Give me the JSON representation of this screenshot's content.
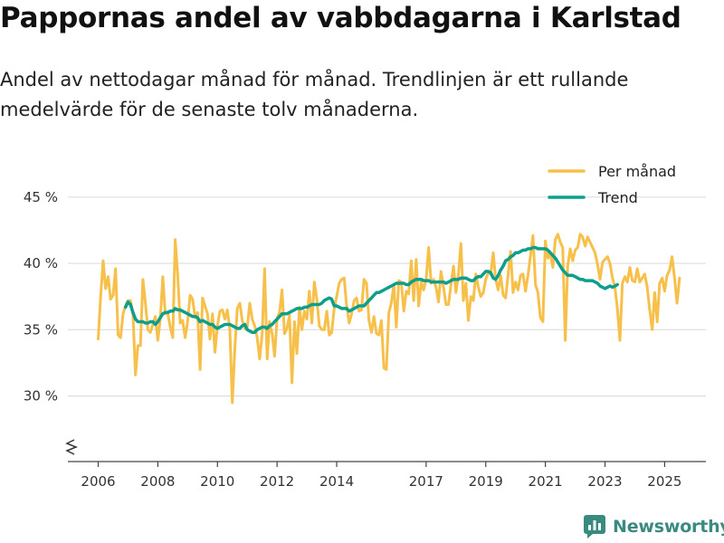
{
  "title": "Pappornas andel av vabbdagarna i Karlstad",
  "subtitle": "Andel av nettodagar månad för månad. Trendlinjen är ett rullande medelvärde för de senaste tolv månaderna.",
  "brand": "Newsworthy",
  "colors": {
    "per_manad": "#f7c04a",
    "trend": "#0e9e8c",
    "grid": "#dddddd",
    "brand": "#3b8a7f"
  },
  "chart_data": {
    "type": "line",
    "title": "Pappornas andel av vabbdagarna i Karlstad",
    "xlabel": "",
    "ylabel": "",
    "x_range": [
      2006,
      2025.5
    ],
    "ylim": [
      25,
      45
    ],
    "y_ticks": [
      30,
      35,
      40,
      45
    ],
    "y_tick_labels": [
      "30 %",
      "35 %",
      "40 %",
      "45 %"
    ],
    "x_ticks": [
      2006,
      2008,
      2010,
      2012,
      2014,
      2017,
      2019,
      2021,
      2023,
      2025
    ],
    "x_tick_labels": [
      "2006",
      "2008",
      "2010",
      "2012",
      "2014",
      "2017",
      "2019",
      "2021",
      "2023",
      "2025"
    ],
    "legend_position": "top-right",
    "series": [
      {
        "name": "Per månad",
        "type": "monthly",
        "start": 2006.0,
        "step": 0.0833333,
        "values": [
          34.3,
          37.5,
          40.2,
          38.1,
          39.0,
          37.3,
          37.6,
          39.6,
          34.6,
          34.4,
          36.2,
          36.8,
          37.2,
          37.2,
          36.2,
          31.6,
          33.8,
          33.8,
          38.8,
          37.0,
          35.0,
          34.8,
          35.4,
          36.0,
          34.2,
          35.8,
          39.0,
          36.2,
          36.2,
          35.2,
          34.4,
          41.8,
          39.2,
          35.5,
          35.7,
          34.4,
          35.6,
          37.6,
          37.3,
          35.9,
          36.3,
          32.0,
          37.4,
          36.8,
          36.2,
          34.3,
          36.2,
          33.3,
          35.3,
          36.4,
          36.5,
          35.8,
          36.5,
          35.0,
          29.5,
          33.6,
          36.6,
          37.0,
          35.7,
          35.1,
          35.2,
          37.0,
          35.8,
          35.3,
          34.4,
          32.8,
          34.7,
          39.6,
          32.8,
          35.6,
          34.7,
          33.0,
          35.9,
          36.3,
          38.0,
          34.7,
          35.1,
          36.1,
          31.0,
          35.6,
          33.2,
          36.7,
          35.0,
          36.4,
          35.8,
          37.9,
          35.5,
          38.6,
          37.3,
          35.3,
          35.0,
          35.0,
          36.4,
          34.6,
          34.8,
          36.6,
          37.5,
          38.5,
          38.8,
          38.9,
          36.8,
          35.5,
          36.2,
          37.2,
          37.4,
          36.4,
          36.5,
          38.8,
          38.5,
          35.7,
          34.8,
          36.0,
          34.7,
          34.6,
          35.7,
          32.1,
          32.0,
          36.3,
          37.0,
          38.4,
          35.2,
          38.7,
          38.6,
          36.4,
          37.9,
          37.7,
          40.2,
          37.2,
          40.3,
          36.8,
          38.6,
          38.0,
          38.8,
          41.2,
          38.5,
          38.8,
          38.2,
          37.1,
          39.4,
          38.2,
          36.9,
          36.9,
          38.4,
          39.8,
          37.8,
          39.2,
          41.5,
          37.2,
          38.5,
          35.7,
          37.5,
          37.2,
          39.2,
          38.2,
          37.5,
          37.8,
          38.8,
          39.3,
          39.2,
          40.8,
          38.8,
          38.0,
          39.1,
          37.6,
          37.4,
          39.2,
          40.9,
          37.8,
          38.6,
          38.0,
          39.1,
          39.2,
          37.9,
          39.1,
          40.6,
          42.1,
          38.4,
          37.8,
          35.9,
          35.6,
          41.7,
          40.4,
          40.7,
          39.7,
          41.8,
          42.2,
          41.6,
          41.2,
          34.2,
          39.8,
          41.1,
          40.2,
          41.0,
          41.2,
          42.2,
          42.0,
          41.3,
          42.0,
          41.6,
          41.2,
          40.8,
          39.9,
          38.8,
          40.1,
          40.3,
          40.5,
          40.0,
          38.9,
          38.2,
          36.6,
          34.2,
          38.5,
          39.0,
          38.6,
          39.7,
          38.7,
          38.6,
          39.6,
          38.6,
          38.9,
          39.2,
          38.2,
          36.5,
          35.0,
          37.8,
          35.6,
          38.5,
          38.9,
          37.9,
          39.1,
          39.5,
          40.5,
          38.9,
          37.0,
          38.9
        ]
      },
      {
        "name": "Trend",
        "type": "monthly",
        "start": 2006.9167,
        "step": 0.0833333,
        "values": [
          36.7,
          37.1,
          36.9,
          36.3,
          35.8,
          35.6,
          35.6,
          35.6,
          35.5,
          35.5,
          35.6,
          35.6,
          35.4,
          35.6,
          35.9,
          36.2,
          36.3,
          36.3,
          36.4,
          36.4,
          36.6,
          36.5,
          36.5,
          36.4,
          36.3,
          36.2,
          36.1,
          36.0,
          36.0,
          35.9,
          35.6,
          35.7,
          35.6,
          35.5,
          35.4,
          35.4,
          35.2,
          35.1,
          35.2,
          35.3,
          35.4,
          35.4,
          35.4,
          35.3,
          35.2,
          35.1,
          35.1,
          35.3,
          35.4,
          35.0,
          34.9,
          34.8,
          34.8,
          35.0,
          35.1,
          35.2,
          35.2,
          35.1,
          35.3,
          35.4,
          35.6,
          35.8,
          36.0,
          36.2,
          36.2,
          36.2,
          36.3,
          36.4,
          36.5,
          36.6,
          36.6,
          36.6,
          36.7,
          36.7,
          36.8,
          36.9,
          36.9,
          36.9,
          36.9,
          37.0,
          37.2,
          37.3,
          37.4,
          37.3,
          36.8,
          36.8,
          36.7,
          36.6,
          36.6,
          36.6,
          36.4,
          36.5,
          36.6,
          36.7,
          36.8,
          36.8,
          36.8,
          37.0,
          37.2,
          37.4,
          37.6,
          37.8,
          37.8,
          37.9,
          38.0,
          38.1,
          38.2,
          38.3,
          38.4,
          38.5,
          38.5,
          38.5,
          38.5,
          38.4,
          38.4,
          38.6,
          38.7,
          38.8,
          38.8,
          38.8,
          38.7,
          38.7,
          38.7,
          38.6,
          38.6,
          38.6,
          38.6,
          38.6,
          38.6,
          38.5,
          38.6,
          38.7,
          38.8,
          38.8,
          38.8,
          38.9,
          38.9,
          38.9,
          38.8,
          38.7,
          38.7,
          38.9,
          39.0,
          39.0,
          39.2,
          39.4,
          39.4,
          39.3,
          38.9,
          38.8,
          39.1,
          39.5,
          39.8,
          40.2,
          40.3,
          40.5,
          40.6,
          40.8,
          40.8,
          40.9,
          41.0,
          41.0,
          41.1,
          41.1,
          41.2,
          41.2,
          41.1,
          41.1,
          41.1,
          41.1,
          41.0,
          40.8,
          40.6,
          40.4,
          40.1,
          39.8,
          39.5,
          39.3,
          39.1,
          39.1,
          39.1,
          39.0,
          38.9,
          38.8,
          38.8,
          38.7,
          38.7,
          38.7,
          38.7,
          38.6,
          38.5,
          38.3,
          38.2,
          38.1,
          38.2,
          38.3,
          38.2,
          38.3,
          38.4
        ]
      }
    ]
  }
}
